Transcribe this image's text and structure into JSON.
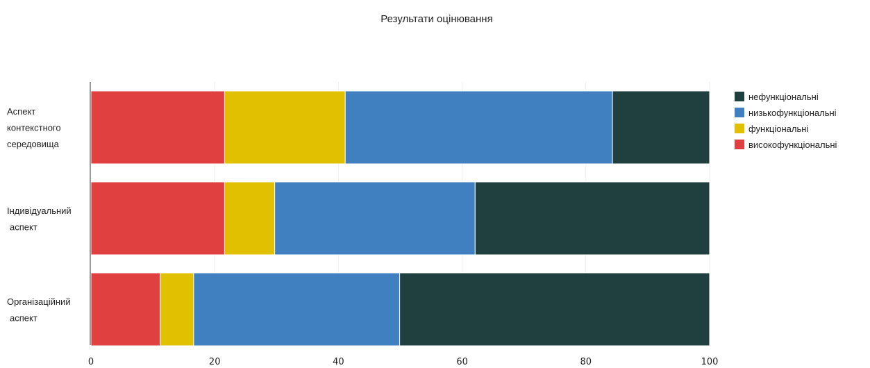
{
  "chart_data": {
    "type": "bar",
    "orientation": "horizontal",
    "stacked": true,
    "title": "Результати оцінювання",
    "categories": [
      [
        "Аспект",
        "контекстного",
        "середовища"
      ],
      [
        "Індивідуальний",
        "аспект"
      ],
      [
        "Організаційний",
        "аспект"
      ]
    ],
    "series": [
      {
        "name": "високофункціональні",
        "color": "#e04040",
        "values": [
          21.6,
          21.6,
          11.2
        ]
      },
      {
        "name": "функціональні",
        "color": "#e0c000",
        "values": [
          19.5,
          8.1,
          5.4
        ]
      },
      {
        "name": "низькофункціональні",
        "color": "#4080c0",
        "values": [
          43.2,
          32.4,
          33.3
        ]
      },
      {
        "name": "нефункціональні",
        "color": "#204040",
        "values": [
          15.7,
          37.9,
          50.1
        ]
      }
    ],
    "xlim": [
      0,
      100
    ],
    "xticks": [
      0,
      20,
      40,
      60,
      80,
      100
    ],
    "grid": true,
    "legend_position": "right",
    "legend_order": [
      "нефункціональні",
      "низькофункціональні",
      "функціональні",
      "високофункціональні"
    ]
  }
}
